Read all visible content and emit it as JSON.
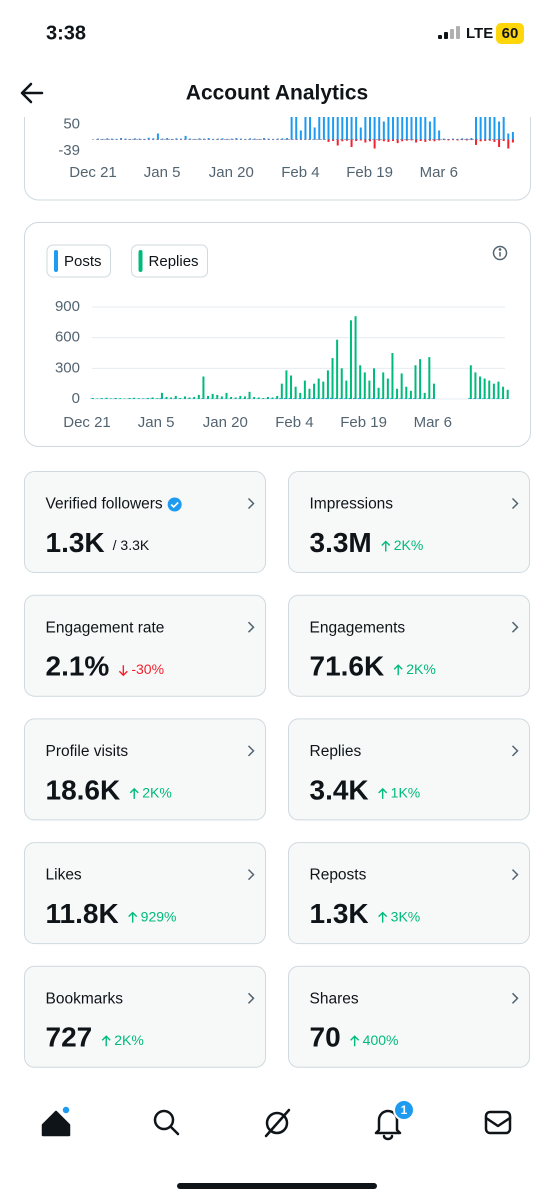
{
  "status_bar": {
    "time": "3:38",
    "network": "LTE",
    "battery": "60"
  },
  "header": {
    "title": "Account Analytics"
  },
  "chart_data": [
    {
      "type": "bar",
      "colors": [
        "#1d9bf0",
        "#f4212e"
      ],
      "categories": [
        "Dec 21",
        null,
        null,
        null,
        null,
        null,
        null,
        null,
        null,
        null,
        null,
        null,
        null,
        null,
        null,
        "Jan 5",
        null,
        null,
        null,
        null,
        null,
        null,
        null,
        null,
        null,
        null,
        null,
        null,
        null,
        null,
        "Jan 20",
        null,
        null,
        null,
        null,
        null,
        null,
        null,
        null,
        null,
        null,
        null,
        null,
        null,
        null,
        "Feb 4",
        null,
        null,
        null,
        null,
        null,
        null,
        null,
        null,
        null,
        null,
        null,
        null,
        null,
        null,
        "Feb 19",
        null,
        null,
        null,
        null,
        null,
        null,
        null,
        null,
        null,
        null,
        null,
        null,
        null,
        null,
        "Mar 6",
        null,
        null,
        null,
        null,
        null,
        null,
        null,
        null,
        null,
        null,
        null,
        null,
        null,
        null,
        null
      ],
      "series": [
        {
          "color": "#1d9bf0",
          "values": [
            3,
            2,
            4,
            3,
            2,
            5,
            3,
            2,
            4,
            3,
            2,
            6,
            4,
            20,
            3,
            5,
            2,
            4,
            3,
            12,
            3,
            2,
            4,
            3,
            5,
            2,
            3,
            4,
            2,
            3,
            5,
            3,
            2,
            4,
            3,
            2,
            5,
            3,
            2,
            3,
            4,
            5,
            120,
            110,
            30,
            100,
            130,
            40,
            120,
            140,
            110,
            130,
            120,
            100,
            130,
            90,
            120,
            40,
            110,
            130,
            120,
            100,
            60,
            110,
            120,
            130,
            100,
            140,
            110,
            120,
            130,
            110,
            60,
            120,
            30,
            3,
            2,
            3,
            2,
            4,
            3,
            5,
            130,
            120,
            110,
            100,
            130,
            60,
            120,
            20,
            25
          ]
        },
        {
          "color": "#f4212e",
          "values": [
            -1,
            -1,
            -1,
            -1,
            -1,
            -1,
            -1,
            -1,
            -1,
            -1,
            -1,
            -1,
            -1,
            -1,
            -1,
            -1,
            -1,
            -1,
            -1,
            -1,
            -1,
            -1,
            -1,
            -1,
            -1,
            -1,
            -1,
            -1,
            -1,
            -1,
            -1,
            -1,
            -1,
            -1,
            -1,
            -1,
            -1,
            -1,
            -1,
            -1,
            -1,
            -1,
            -1,
            -1,
            -1,
            -1,
            -1,
            -1,
            -1,
            -1,
            -8,
            -5,
            -20,
            -6,
            -4,
            -25,
            -5,
            -3,
            -10,
            -6,
            -30,
            -4,
            -6,
            -8,
            -5,
            -12,
            -6,
            -4,
            -3,
            -10,
            -5,
            -8,
            -4,
            -6,
            -3,
            -2,
            -3,
            -2,
            -3,
            -2,
            -3,
            -2,
            -18,
            -6,
            -5,
            -4,
            -8,
            -25,
            -5,
            -30,
            -10
          ]
        }
      ],
      "ylim": [
        -60,
        150
      ],
      "yticks": [
        50,
        -39
      ]
    },
    {
      "type": "bar",
      "categories": [
        "Dec 21",
        null,
        null,
        null,
        null,
        null,
        null,
        null,
        null,
        null,
        null,
        null,
        null,
        null,
        null,
        "Jan 5",
        null,
        null,
        null,
        null,
        null,
        null,
        null,
        null,
        null,
        null,
        null,
        null,
        null,
        null,
        "Jan 20",
        null,
        null,
        null,
        null,
        null,
        null,
        null,
        null,
        null,
        null,
        null,
        null,
        null,
        null,
        "Feb 4",
        null,
        null,
        null,
        null,
        null,
        null,
        null,
        null,
        null,
        null,
        null,
        null,
        null,
        null,
        "Feb 19",
        null,
        null,
        null,
        null,
        null,
        null,
        null,
        null,
        null,
        null,
        null,
        null,
        null,
        null,
        "Mar 6",
        null,
        null,
        null,
        null,
        null,
        null,
        null,
        null,
        null,
        null,
        null,
        null,
        null,
        null,
        null
      ],
      "series": [
        {
          "name": "Posts",
          "color": "#1d9bf0",
          "values": [
            4,
            3,
            5,
            4,
            3,
            5,
            4,
            3,
            4,
            5,
            3,
            4,
            5,
            6,
            4,
            8,
            4,
            3,
            5,
            4,
            3,
            5,
            4,
            3,
            6,
            4,
            3,
            5,
            4,
            3,
            4,
            3,
            5,
            4,
            6,
            3,
            4,
            3,
            5,
            4,
            6,
            8,
            10,
            9,
            7,
            6,
            8,
            7,
            9,
            8,
            7,
            10,
            12,
            9,
            8,
            7,
            10,
            9,
            8,
            7,
            6,
            8,
            7,
            9,
            6,
            8,
            7,
            6,
            5,
            8,
            7,
            6,
            5,
            7,
            6,
            0,
            0,
            0,
            0,
            0,
            0,
            0,
            8,
            7,
            6,
            7,
            6,
            5,
            6,
            5,
            4
          ]
        },
        {
          "name": "Replies",
          "color": "#00ba7c",
          "values": [
            10,
            5,
            8,
            12,
            6,
            10,
            8,
            5,
            10,
            12,
            8,
            6,
            10,
            15,
            8,
            60,
            20,
            15,
            30,
            10,
            25,
            15,
            20,
            40,
            220,
            30,
            50,
            40,
            25,
            60,
            20,
            15,
            30,
            25,
            70,
            20,
            15,
            10,
            20,
            15,
            30,
            150,
            280,
            230,
            120,
            60,
            180,
            100,
            150,
            200,
            170,
            280,
            400,
            580,
            300,
            180,
            770,
            810,
            330,
            260,
            180,
            300,
            110,
            260,
            200,
            450,
            100,
            250,
            120,
            80,
            330,
            390,
            60,
            410,
            150,
            0,
            0,
            0,
            0,
            0,
            0,
            0,
            330,
            260,
            220,
            200,
            180,
            150,
            170,
            120,
            90
          ]
        }
      ],
      "ylim": [
        0,
        900
      ],
      "yticks": [
        0,
        300,
        600,
        900
      ],
      "grid": true
    }
  ],
  "metrics": [
    {
      "label": "Verified followers",
      "value": "1.3K",
      "total": "/ 3.3K"
    },
    {
      "label": "Impressions",
      "value": "3.3M",
      "change": "2K%",
      "trend": "up"
    },
    {
      "label": "Engagement rate",
      "value": "2.1%",
      "change": "-30%",
      "trend": "down"
    },
    {
      "label": "Engagements",
      "value": "71.6K",
      "change": "2K%",
      "trend": "up"
    },
    {
      "label": "Profile visits",
      "value": "18.6K",
      "change": "2K%",
      "trend": "up"
    },
    {
      "label": "Replies",
      "value": "3.4K",
      "change": "1K%",
      "trend": "up"
    },
    {
      "label": "Likes",
      "value": "11.8K",
      "change": "929%",
      "trend": "up"
    },
    {
      "label": "Reposts",
      "value": "1.3K",
      "change": "3K%",
      "trend": "up"
    },
    {
      "label": "Bookmarks",
      "value": "727",
      "change": "2K%",
      "trend": "up"
    },
    {
      "label": "Shares",
      "value": "70",
      "change": "400%",
      "trend": "up"
    }
  ],
  "nav": {
    "badge": "1"
  }
}
